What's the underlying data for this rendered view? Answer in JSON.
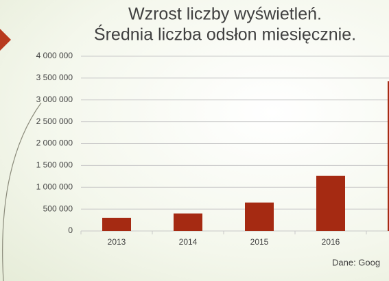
{
  "chart_data": {
    "type": "bar",
    "title": [
      "Wzrost liczby wyświetleń.",
      "Średnia liczba odsłon miesięcznie."
    ],
    "categories": [
      "2013",
      "2014",
      "2015",
      "2016",
      null
    ],
    "values": [
      300000,
      400000,
      650000,
      1260000,
      3430000
    ],
    "color": "#a52a12",
    "ylim": [
      0,
      4000000
    ],
    "yticks": [
      0,
      {
        "value": 500000,
        "label": "500 000"
      },
      {
        "value": 1000000,
        "label": "1 000 000"
      },
      {
        "value": 1500000,
        "label": "1 500 000"
      },
      {
        "value": 2000000,
        "label": "2 000 000"
      },
      {
        "value": 2500000,
        "label": "2 500 000"
      },
      {
        "value": 3000000,
        "label": "3 000 000"
      },
      {
        "value": 3500000,
        "label": "3 500 000"
      },
      {
        "value": 4000000,
        "label": "4 000 000"
      }
    ],
    "grid": true,
    "source": "Dane: Goog"
  }
}
